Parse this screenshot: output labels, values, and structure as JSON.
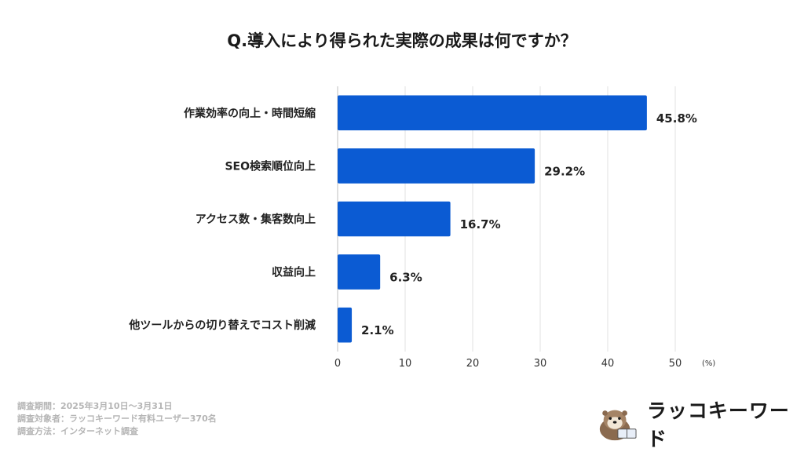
{
  "chart_data": {
    "type": "bar",
    "orientation": "horizontal",
    "title": "Q.導入により得られた実際の成果は何ですか？",
    "categories": [
      "作業効率の向上・時間短縮",
      "SEO検索順位向上",
      "アクセス数・集客数向上",
      "収益向上",
      "他ツールからの切り替えでコスト削減"
    ],
    "values": [
      45.8,
      29.2,
      16.7,
      6.3,
      2.1
    ],
    "value_labels": [
      "45.8%",
      "29.2%",
      "16.7%",
      "6.3%",
      "2.1%"
    ],
    "xlim": [
      0,
      50
    ],
    "xticks": [
      0,
      10,
      20,
      30,
      40,
      50
    ],
    "xticklabels": [
      "0",
      "10",
      "20",
      "30",
      "40",
      "50"
    ],
    "unit_label": "(%)",
    "grid": true,
    "bar_color": "#0b5bd3"
  },
  "footnotes": [
    "調査期間：2025年3月10日〜3月31日",
    "調査対象者：ラッコキーワード有料ユーザー370名",
    "調査方法：インターネット調査"
  ],
  "brand": {
    "name": "ラッコキーワード",
    "logo_icon": "sea-otter-icon"
  }
}
